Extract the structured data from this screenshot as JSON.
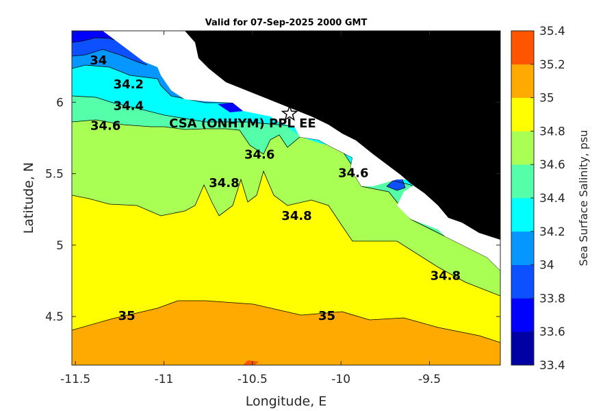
{
  "chart_data": {
    "type": "contour",
    "title": "Valid for 07-Sep-2025 2000 GMT",
    "xlabel": "Longitude, E",
    "ylabel": "Latitude, N",
    "xlim": [
      -11.52,
      -9.1
    ],
    "ylim": [
      4.16,
      6.5
    ],
    "xticks": [
      -11.5,
      -11,
      -10.5,
      -10,
      -9.5
    ],
    "xtick_labels": [
      "-11.5",
      "-11",
      "-10.5",
      "-10",
      "-9.5"
    ],
    "yticks": [
      4.5,
      5,
      5.5,
      6
    ],
    "ytick_labels": [
      "4.5",
      "5",
      "5.5",
      "6"
    ],
    "colorbar": {
      "label": "Sea Surface Salinity, psu",
      "range": [
        33.4,
        35.4
      ],
      "ticks": [
        33.4,
        33.6,
        33.8,
        34,
        34.2,
        34.4,
        34.6,
        34.8,
        35,
        35.2,
        35.4
      ],
      "tick_labels": [
        "33.4",
        "33.6",
        "33.8",
        "34",
        "34.2",
        "34.4",
        "34.6",
        "34.8",
        "35",
        "35.2",
        "35.4"
      ],
      "colors": [
        "#0000a4",
        "#0000ff",
        "#0c50ff",
        "#0596ff",
        "#00ffff",
        "#55ffaa",
        "#aaff55",
        "#ffff00",
        "#ffaa00",
        "#ff5500"
      ]
    },
    "contour_labels": [
      {
        "text": "34",
        "lon": -11.37,
        "lat": 6.29
      },
      {
        "text": "34.2",
        "lon": -11.2,
        "lat": 6.12
      },
      {
        "text": "34.4",
        "lon": -11.2,
        "lat": 5.97
      },
      {
        "text": "34.6",
        "lon": -11.33,
        "lat": 5.83
      },
      {
        "text": "34.6",
        "lon": -10.46,
        "lat": 5.63
      },
      {
        "text": "34.6",
        "lon": -9.93,
        "lat": 5.5
      },
      {
        "text": "34.8",
        "lon": -10.66,
        "lat": 5.43
      },
      {
        "text": "34.8",
        "lon": -10.25,
        "lat": 5.2
      },
      {
        "text": "34.8",
        "lon": -9.41,
        "lat": 4.78
      },
      {
        "text": "35",
        "lon": -11.21,
        "lat": 4.5
      },
      {
        "text": "35",
        "lon": -10.08,
        "lat": 4.5
      }
    ],
    "site": {
      "name": "CSA (ONHYM) PPL EE",
      "lon": -10.29,
      "lat": 5.92,
      "marker": "star"
    },
    "land_color": "#000000",
    "no_data_color": "#ffffff"
  }
}
